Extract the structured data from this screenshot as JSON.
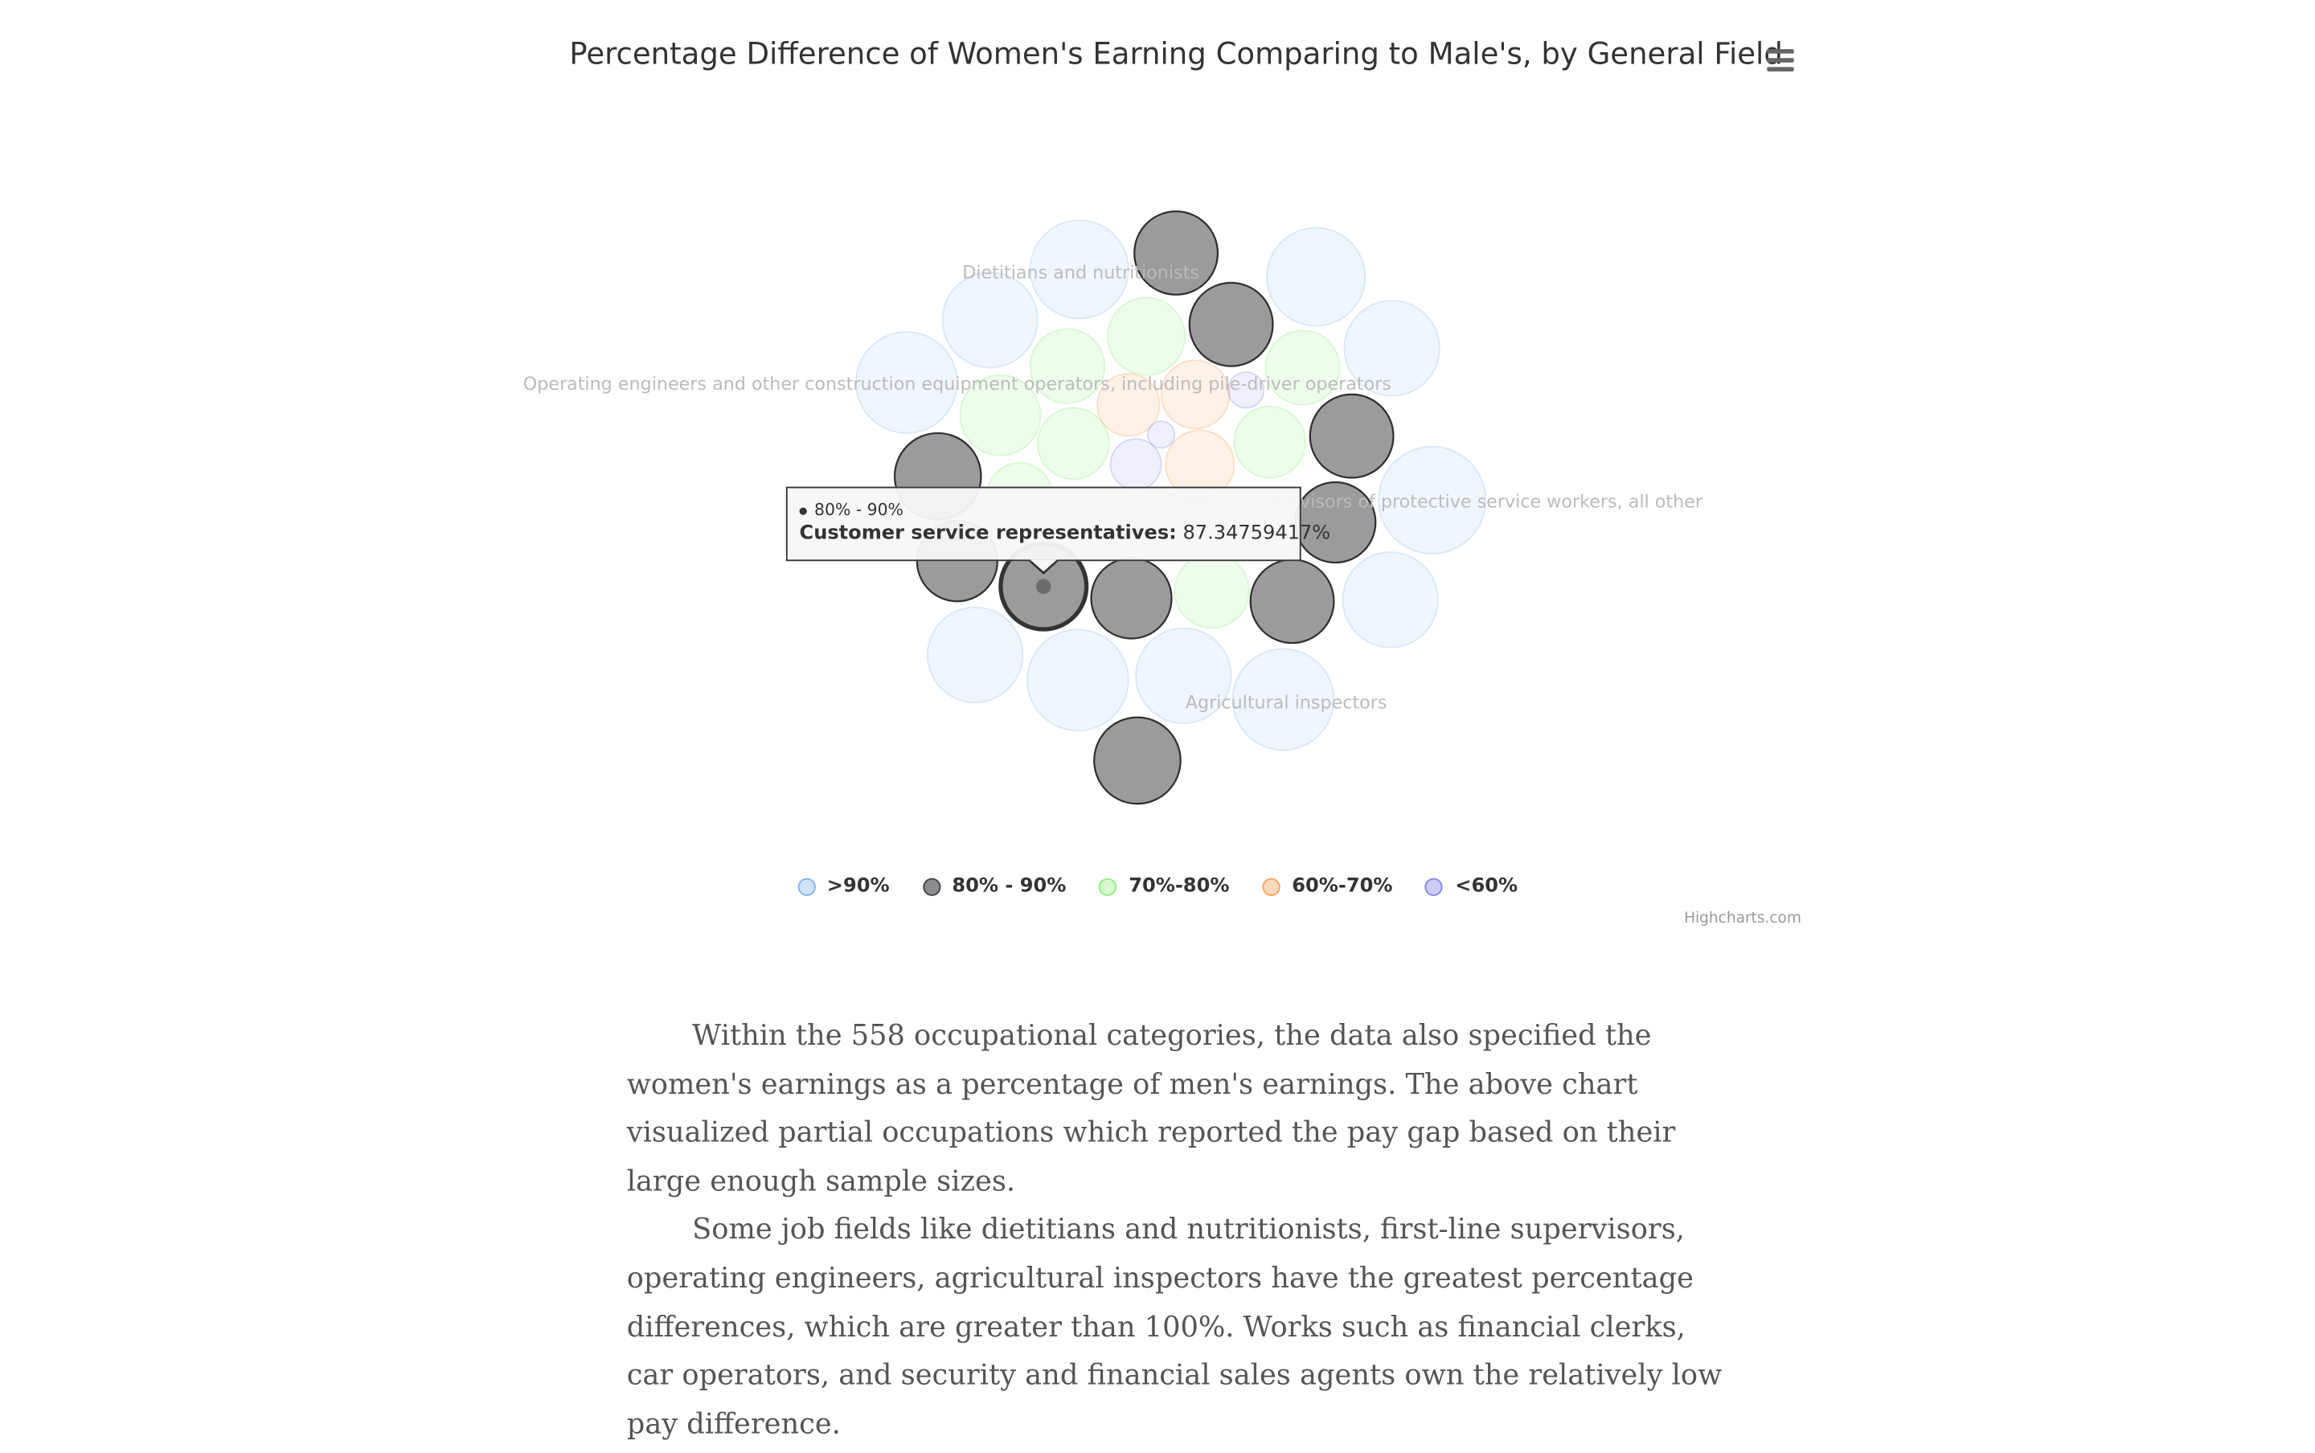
{
  "chart_data": {
    "type": "packedbubble",
    "title": "Percentage Difference of Women's Earning Comparing to Male's, by General Field",
    "series": [
      {
        "name": ">90%",
        "color": "#7cb5ec",
        "labels": [
          "Dietitians and nutritionists",
          "Operating engineers and other construction equipment operators, including pile-driver operators",
          "First-line supervisors of protective service workers, all other",
          "Agricultural inspectors"
        ]
      },
      {
        "name": "80% - 90%",
        "color": "#434348",
        "points": [
          {
            "name": "Customer service representatives",
            "value": 87.34759417
          }
        ]
      },
      {
        "name": "70%-80%",
        "color": "#90ed7d"
      },
      {
        "name": "60%-70%",
        "color": "#f7a35c"
      },
      {
        "name": "<60%",
        "color": "#8085e9"
      }
    ]
  },
  "tooltip": {
    "series_name": "80% - 90%",
    "point_name": "Customer service representatives:",
    "point_value": "87.34759417%"
  },
  "credit": "Highcharts.com",
  "menu_icon": "hamburger-menu-icon",
  "article": {
    "paragraphs": [
      "Within the 558 occupational categories, the data also specified the women's earnings as a percentage of men's earnings. The above chart visualized partial occupations which reported the pay gap based on their large enough sample sizes.",
      "Some job fields like dietitians and nutritionists, first-line supervisors, operating engineers, agricultural inspectors have the greatest percentage differences, which are greater than 100%. Works such as financial clerks, car operators, and security and financial sales agents own the relatively low pay difference."
    ]
  }
}
